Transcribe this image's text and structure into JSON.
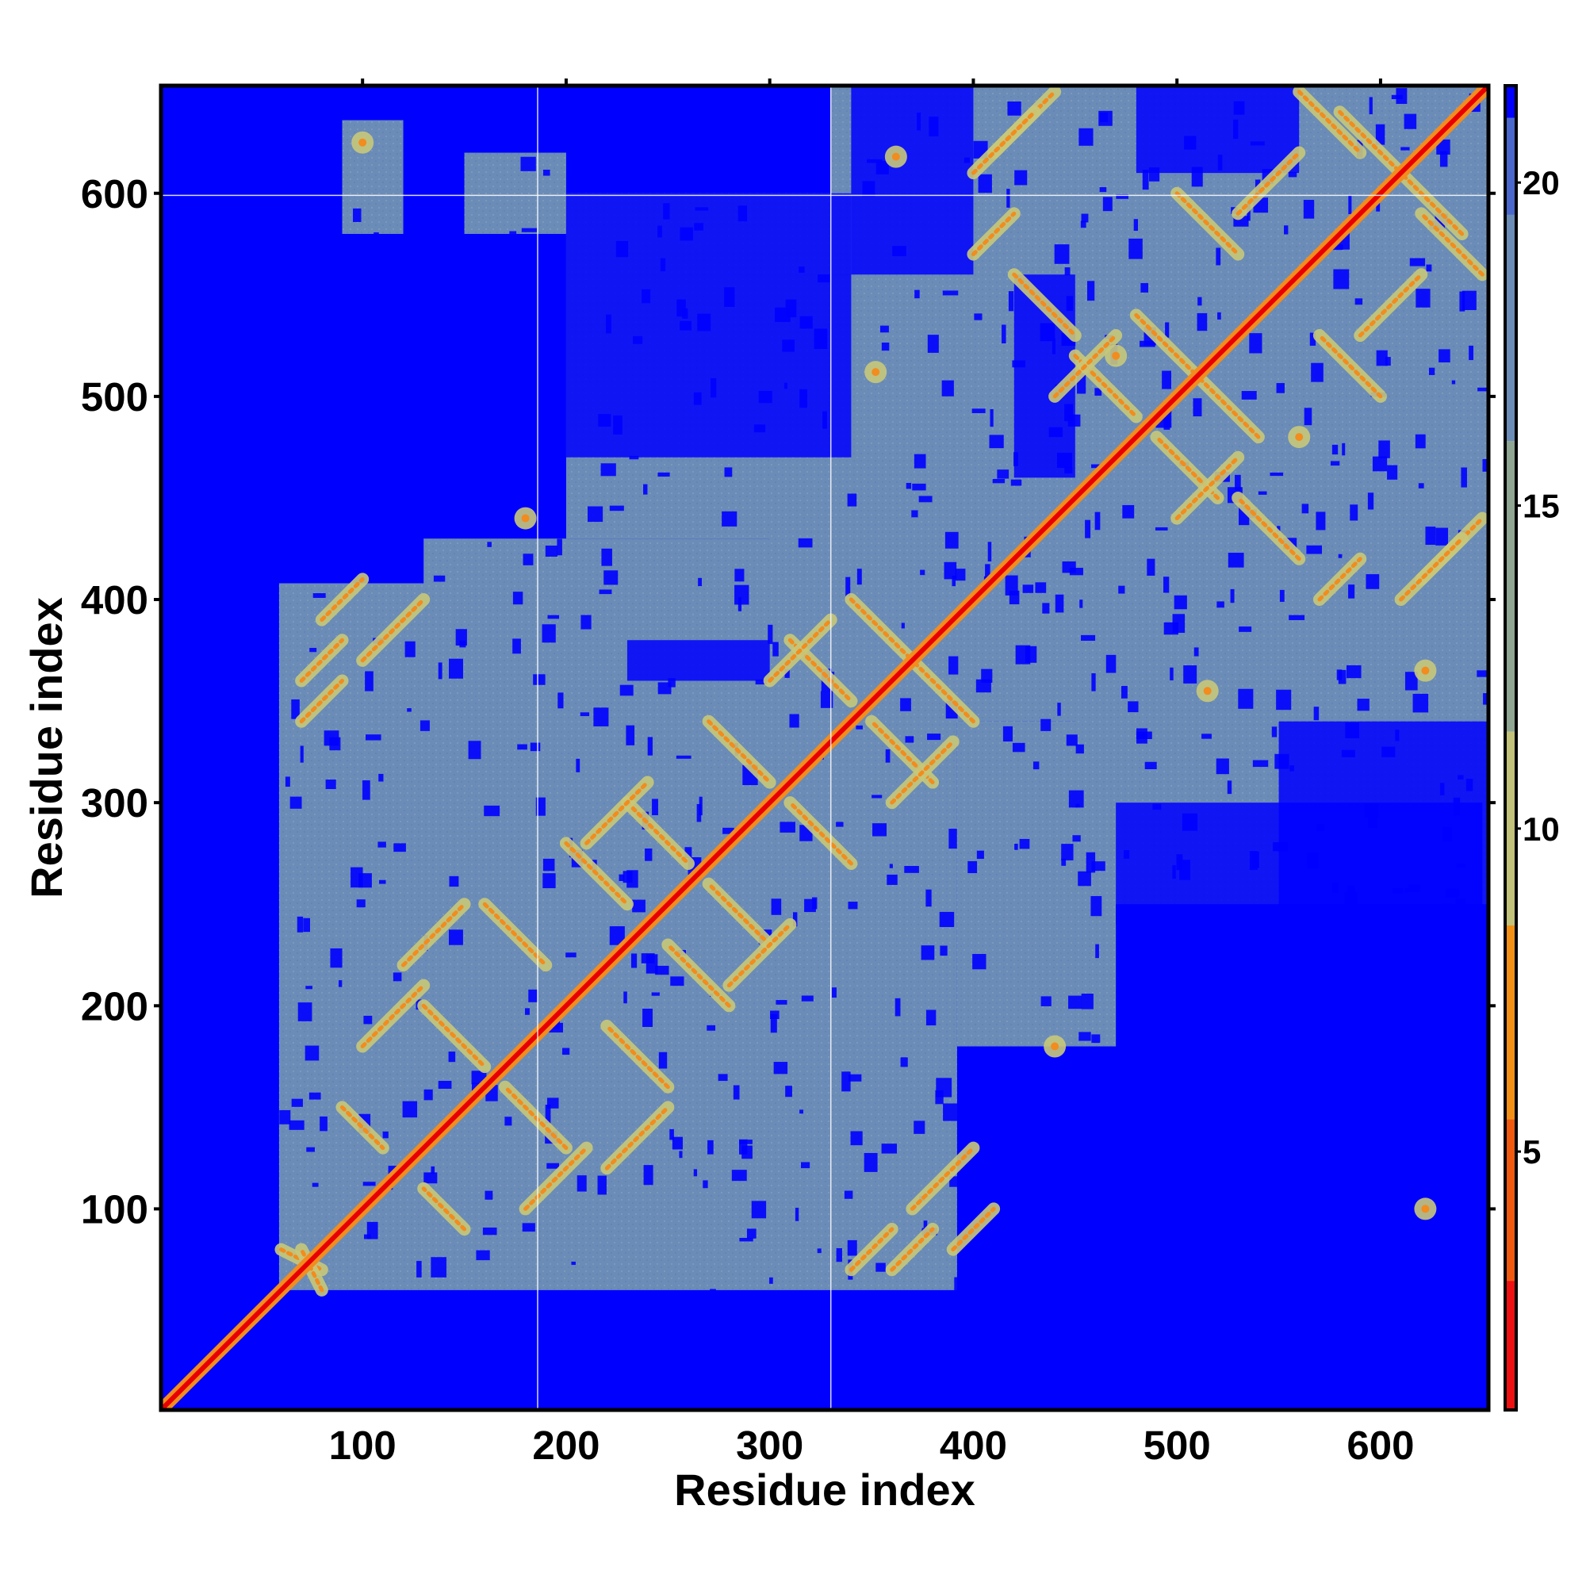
{
  "chart_data": {
    "type": "heatmap",
    "title": "",
    "xlabel": "Residue index",
    "ylabel": "Residue index",
    "xlim": [
      1,
      653
    ],
    "ylim": [
      1,
      653
    ],
    "x_ticks": [
      100,
      200,
      300,
      400,
      500,
      600
    ],
    "y_ticks": [
      100,
      200,
      300,
      400,
      500,
      600
    ],
    "x_tick_labels": [
      "100",
      "200",
      "300",
      "400",
      "500",
      "600"
    ],
    "y_tick_labels": [
      "100",
      "200",
      "300",
      "400",
      "500",
      "600"
    ],
    "colorbar": {
      "range": [
        1,
        21.5
      ],
      "ticks": [
        5,
        10,
        15,
        20
      ],
      "tick_labels": [
        "5",
        "10",
        "15",
        "20"
      ],
      "bands": [
        {
          "from": 1,
          "to": 3,
          "color": "#ee1111"
        },
        {
          "from": 3,
          "to": 5.5,
          "color": "#f05a10"
        },
        {
          "from": 5.5,
          "to": 8.5,
          "color": "#f29015"
        },
        {
          "from": 8.5,
          "to": 11.5,
          "color": "#c2c27a"
        },
        {
          "from": 11.5,
          "to": 16,
          "color": "#8fa692"
        },
        {
          "from": 16,
          "to": 19.5,
          "color": "#6b8cb7"
        },
        {
          "from": 19.5,
          "to": 21,
          "color": "#4a68cc"
        },
        {
          "from": 21,
          "to": 21.5,
          "color": "#0000ff"
        }
      ]
    },
    "colors": {
      "far": "#0000ff",
      "medium": "#6b8cb7",
      "near": "#c8c87a",
      "contact": "#f28c1e",
      "diagonal": "#e80000"
    },
    "reference_lines": {
      "vertical": [
        186,
        330
      ],
      "horizontal": [
        599
      ]
    },
    "medium_blocks": [
      {
        "x": [
          59,
          392
        ],
        "y": [
          60,
          408
        ]
      },
      {
        "x": [
          130,
          410
        ],
        "y": [
          340,
          430
        ]
      },
      {
        "x": [
          393,
          650
        ],
        "y": [
          430,
          650
        ]
      },
      {
        "x": [
          340,
          653
        ],
        "y": [
          340,
          653
        ]
      },
      {
        "x": [
          392,
          470
        ],
        "y": [
          180,
          340
        ]
      },
      {
        "x": [
          90,
          120
        ],
        "y": [
          580,
          636
        ]
      },
      {
        "x": [
          150,
          200
        ],
        "y": [
          580,
          620
        ]
      },
      {
        "x": [
          200,
          330
        ],
        "y": [
          430,
          600
        ]
      },
      {
        "x": [
          330,
          653
        ],
        "y": [
          560,
          653
        ]
      },
      {
        "x": [
          450,
          653
        ],
        "y": [
          250,
          430
        ]
      },
      {
        "x": [
          300,
          420
        ],
        "y": [
          400,
          560
        ]
      }
    ],
    "far_holes": [
      {
        "x": [
          200,
          340
        ],
        "y": [
          470,
          600
        ]
      },
      {
        "x": [
          230,
          300
        ],
        "y": [
          360,
          380
        ]
      },
      {
        "x": [
          470,
          650
        ],
        "y": [
          240,
          300
        ]
      },
      {
        "x": [
          550,
          653
        ],
        "y": [
          200,
          340
        ]
      },
      {
        "x": [
          340,
          400
        ],
        "y": [
          560,
          653
        ]
      },
      {
        "x": [
          420,
          450
        ],
        "y": [
          460,
          560
        ]
      },
      {
        "x": [
          480,
          560
        ],
        "y": [
          610,
          653
        ]
      }
    ],
    "strand_pairs": [
      {
        "a": [
          60,
          80
        ],
        "b": [
          80,
          70
        ],
        "type": "anti"
      },
      {
        "a": [
          90,
          110
        ],
        "b": [
          150,
          130
        ],
        "type": "anti"
      },
      {
        "a": [
          130,
          160
        ],
        "b": [
          200,
          170
        ],
        "type": "anti"
      },
      {
        "a": [
          160,
          190
        ],
        "b": [
          250,
          220
        ],
        "type": "anti"
      },
      {
        "a": [
          200,
          230
        ],
        "b": [
          280,
          250
        ],
        "type": "anti"
      },
      {
        "a": [
          230,
          260
        ],
        "b": [
          300,
          270
        ],
        "type": "anti"
      },
      {
        "a": [
          270,
          300
        ],
        "b": [
          340,
          310
        ],
        "type": "anti"
      },
      {
        "a": [
          310,
          340
        ],
        "b": [
          380,
          350
        ],
        "type": "anti"
      },
      {
        "a": [
          340,
          370
        ],
        "b": [
          400,
          370
        ],
        "type": "anti"
      },
      {
        "a": [
          420,
          450
        ],
        "b": [
          560,
          530
        ],
        "type": "anti"
      },
      {
        "a": [
          450,
          480
        ],
        "b": [
          520,
          490
        ],
        "type": "anti"
      },
      {
        "a": [
          480,
          510
        ],
        "b": [
          540,
          510
        ],
        "type": "anti"
      },
      {
        "a": [
          500,
          530
        ],
        "b": [
          600,
          570
        ],
        "type": "anti"
      },
      {
        "a": [
          560,
          590
        ],
        "b": [
          650,
          620
        ],
        "type": "anti"
      },
      {
        "a": [
          580,
          610
        ],
        "b": [
          640,
          610
        ],
        "type": "anti"
      },
      {
        "a": [
          100,
          130
        ],
        "b": [
          180,
          210
        ],
        "type": "par"
      },
      {
        "a": [
          120,
          150
        ],
        "b": [
          220,
          250
        ],
        "type": "par"
      },
      {
        "a": [
          210,
          240
        ],
        "b": [
          280,
          310
        ],
        "type": "par"
      },
      {
        "a": [
          300,
          330
        ],
        "b": [
          360,
          390
        ],
        "type": "par"
      },
      {
        "a": [
          440,
          470
        ],
        "b": [
          500,
          530
        ],
        "type": "par"
      },
      {
        "a": [
          530,
          560
        ],
        "b": [
          590,
          620
        ],
        "type": "par"
      },
      {
        "a": [
          70,
          90
        ],
        "b": [
          360,
          380
        ],
        "type": "par"
      },
      {
        "a": [
          80,
          100
        ],
        "b": [
          390,
          410
        ],
        "type": "par"
      },
      {
        "a": [
          340,
          360
        ],
        "b": [
          70,
          90
        ],
        "type": "par"
      },
      {
        "a": [
          370,
          400
        ],
        "b": [
          100,
          130
        ],
        "type": "par"
      },
      {
        "a": [
          400,
          420
        ],
        "b": [
          570,
          590
        ],
        "type": "par"
      },
      {
        "a": [
          410,
          440
        ],
        "b": [
          620,
          650
        ],
        "type": "par"
      },
      {
        "a": [
          610,
          640
        ],
        "b": [
          400,
          430
        ],
        "type": "par"
      }
    ],
    "spots": [
      {
        "x": 100,
        "y": 625
      },
      {
        "x": 362,
        "y": 618
      },
      {
        "x": 180,
        "y": 440
      },
      {
        "x": 515,
        "y": 355
      },
      {
        "x": 622,
        "y": 365
      },
      {
        "x": 622,
        "y": 100
      },
      {
        "x": 440,
        "y": 180
      },
      {
        "x": 352,
        "y": 512
      },
      {
        "x": 560,
        "y": 480
      },
      {
        "x": 470,
        "y": 520
      }
    ]
  }
}
